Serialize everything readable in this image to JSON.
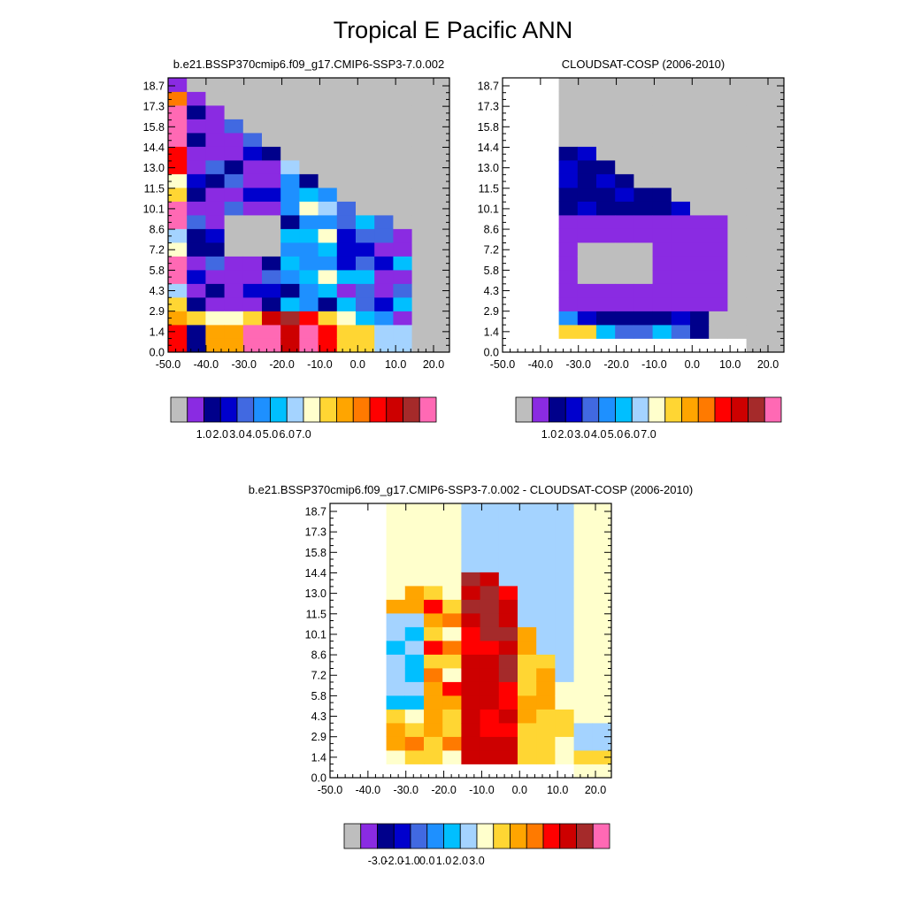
{
  "figure": {
    "title": "Tropical E Pacific ANN"
  },
  "chart_data": [
    {
      "type": "heatmap",
      "title": "b.e21.BSSP370cmip6.f09_g17.CMIP6-SSP3-7.0.002",
      "x_ticks": [
        "-50.0",
        "-40.0",
        "-30.0",
        "-20.0",
        "-10.0",
        "0.0",
        "10.0",
        "20.0"
      ],
      "y_ticks": [
        "0.0",
        "1.4",
        "2.9",
        "4.3",
        "5.8",
        "7.2",
        "8.6",
        "10.1",
        "11.5",
        "13.0",
        "14.4",
        "15.8",
        "17.3",
        "18.7"
      ],
      "colorbar_labels": [
        "1.0",
        "2.0",
        "3.0",
        "4.0",
        "5.0",
        "6.0",
        "7.0"
      ]
    },
    {
      "type": "heatmap",
      "title": "CLOUDSAT-COSP (2006-2010)",
      "x_ticks": [
        "-50.0",
        "-40.0",
        "-30.0",
        "-20.0",
        "-10.0",
        "0.0",
        "10.0",
        "20.0"
      ],
      "y_ticks": [
        "0.0",
        "1.4",
        "2.9",
        "4.3",
        "5.8",
        "7.2",
        "8.6",
        "10.1",
        "11.5",
        "13.0",
        "14.4",
        "15.8",
        "17.3",
        "18.7"
      ],
      "colorbar_labels": [
        "1.0",
        "2.0",
        "3.0",
        "4.0",
        "5.0",
        "6.0",
        "7.0"
      ]
    },
    {
      "type": "heatmap",
      "title": "b.e21.BSSP370cmip6.f09_g17.CMIP6-SSP3-7.0.002 - CLOUDSAT-COSP (2006-2010)",
      "x_ticks": [
        "-50.0",
        "-40.0",
        "-30.0",
        "-20.0",
        "-10.0",
        "0.0",
        "10.0",
        "20.0"
      ],
      "y_ticks": [
        "0.0",
        "1.4",
        "2.9",
        "4.3",
        "5.8",
        "7.2",
        "8.6",
        "10.1",
        "11.5",
        "13.0",
        "14.4",
        "15.8",
        "17.3",
        "18.7"
      ],
      "colorbar_labels": [
        "-3.0",
        "-2.0",
        "-1.0",
        "0.0",
        "1.0",
        "2.0",
        "3.0"
      ]
    }
  ],
  "palette": [
    "#bebebe",
    "#8a2be2",
    "#00008b",
    "#0000cd",
    "#4169e1",
    "#1e90ff",
    "#00bfff",
    "#a4d3ff",
    "#ffffcc",
    "#ffd633",
    "#ffa500",
    "#ff7a00",
    "#ff0000",
    "#cd0000",
    "#a52a2a",
    "#ff69b4"
  ]
}
